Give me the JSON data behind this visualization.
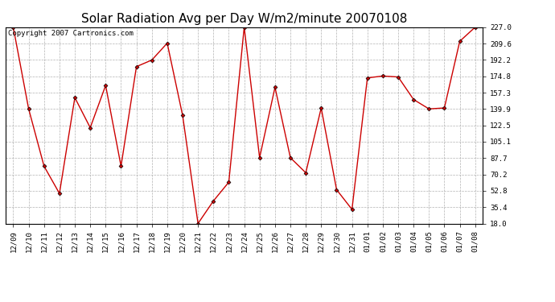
{
  "title": "Solar Radiation Avg per Day W/m2/minute 20070108",
  "copyright": "Copyright 2007 Cartronics.com",
  "x_labels": [
    "12/09",
    "12/10",
    "12/11",
    "12/12",
    "12/13",
    "12/14",
    "12/15",
    "12/16",
    "12/17",
    "12/18",
    "12/19",
    "12/20",
    "12/21",
    "12/22",
    "12/23",
    "12/24",
    "12/25",
    "12/26",
    "12/27",
    "12/28",
    "12/29",
    "12/30",
    "12/31",
    "01/01",
    "01/02",
    "01/03",
    "01/04",
    "01/05",
    "01/06",
    "01/07",
    "01/08"
  ],
  "y_values": [
    227.0,
    140.0,
    79.0,
    50.0,
    152.0,
    120.0,
    165.0,
    79.0,
    185.0,
    192.0,
    210.0,
    133.0,
    18.0,
    42.0,
    62.0,
    227.0,
    88.0,
    163.0,
    88.0,
    72.0,
    141.0,
    54.0,
    33.0,
    173.0,
    175.0,
    174.0,
    150.0,
    140.0,
    141.0,
    212.0,
    227.0
  ],
  "y_ticks": [
    18.0,
    35.4,
    52.8,
    70.2,
    87.7,
    105.1,
    122.5,
    139.9,
    157.3,
    174.8,
    192.2,
    209.6,
    227.0
  ],
  "y_min": 18.0,
  "y_max": 227.0,
  "line_color": "#cc0000",
  "marker": "D",
  "marker_size": 2.5,
  "bg_color": "#ffffff",
  "plot_bg_color": "#ffffff",
  "grid_color": "#aaaaaa",
  "title_fontsize": 11,
  "copyright_fontsize": 6.5,
  "tick_fontsize": 6.5,
  "ytick_fontsize": 6.5
}
